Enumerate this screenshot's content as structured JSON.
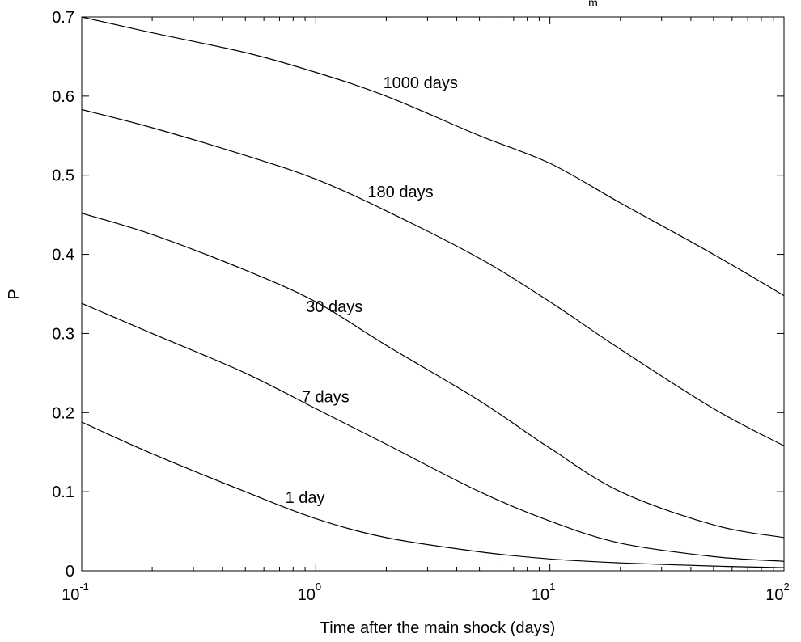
{
  "chart_data": {
    "type": "line",
    "xscale": "log",
    "xlim": [
      0.1,
      100
    ],
    "ylim": [
      0,
      0.7
    ],
    "xlabel": "Time after the main shock (days)",
    "ylabel": "P",
    "title_fragment": "m",
    "grid": false,
    "legend": "none",
    "xticks": [
      {
        "base": "10",
        "exp": "-1",
        "value": 0.1
      },
      {
        "base": "10",
        "exp": "0",
        "value": 1
      },
      {
        "base": "10",
        "exp": "1",
        "value": 10
      },
      {
        "base": "10",
        "exp": "2",
        "value": 100
      }
    ],
    "yticks": [
      {
        "label": "0",
        "value": 0
      },
      {
        "label": "0.1",
        "value": 0.1
      },
      {
        "label": "0.2",
        "value": 0.2
      },
      {
        "label": "0.3",
        "value": 0.3
      },
      {
        "label": "0.4",
        "value": 0.4
      },
      {
        "label": "0.5",
        "value": 0.5
      },
      {
        "label": "0.6",
        "value": 0.6
      },
      {
        "label": "0.7",
        "value": 0.7
      }
    ],
    "series": [
      {
        "name": "1000 days",
        "label_at": [
          2.8,
          0.61
        ],
        "points": [
          [
            0.1,
            0.7
          ],
          [
            0.2,
            0.68
          ],
          [
            0.5,
            0.655
          ],
          [
            1,
            0.63
          ],
          [
            2,
            0.6
          ],
          [
            5,
            0.55
          ],
          [
            10,
            0.515
          ],
          [
            20,
            0.465
          ],
          [
            50,
            0.4
          ],
          [
            100,
            0.348
          ]
        ]
      },
      {
        "name": "180 days",
        "label_at": [
          2.3,
          0.472
        ],
        "points": [
          [
            0.1,
            0.583
          ],
          [
            0.2,
            0.56
          ],
          [
            0.5,
            0.525
          ],
          [
            1,
            0.495
          ],
          [
            2,
            0.455
          ],
          [
            5,
            0.395
          ],
          [
            10,
            0.34
          ],
          [
            20,
            0.28
          ],
          [
            50,
            0.205
          ],
          [
            100,
            0.158
          ]
        ]
      },
      {
        "name": "30 days",
        "label_at": [
          1.2,
          0.327
        ],
        "points": [
          [
            0.1,
            0.452
          ],
          [
            0.2,
            0.425
          ],
          [
            0.5,
            0.38
          ],
          [
            1,
            0.34
          ],
          [
            2,
            0.285
          ],
          [
            5,
            0.215
          ],
          [
            10,
            0.155
          ],
          [
            20,
            0.1
          ],
          [
            50,
            0.058
          ],
          [
            100,
            0.042
          ]
        ]
      },
      {
        "name": "7 days",
        "label_at": [
          1.1,
          0.213
        ],
        "points": [
          [
            0.1,
            0.338
          ],
          [
            0.2,
            0.3
          ],
          [
            0.5,
            0.25
          ],
          [
            1,
            0.205
          ],
          [
            2,
            0.16
          ],
          [
            5,
            0.1
          ],
          [
            10,
            0.063
          ],
          [
            20,
            0.035
          ],
          [
            50,
            0.018
          ],
          [
            100,
            0.012
          ]
        ]
      },
      {
        "name": "1 day",
        "label_at": [
          0.9,
          0.086
        ],
        "points": [
          [
            0.1,
            0.188
          ],
          [
            0.2,
            0.148
          ],
          [
            0.5,
            0.1
          ],
          [
            1,
            0.066
          ],
          [
            2,
            0.042
          ],
          [
            5,
            0.024
          ],
          [
            10,
            0.015
          ],
          [
            20,
            0.01
          ],
          [
            50,
            0.006
          ],
          [
            100,
            0.004
          ]
        ]
      }
    ]
  }
}
